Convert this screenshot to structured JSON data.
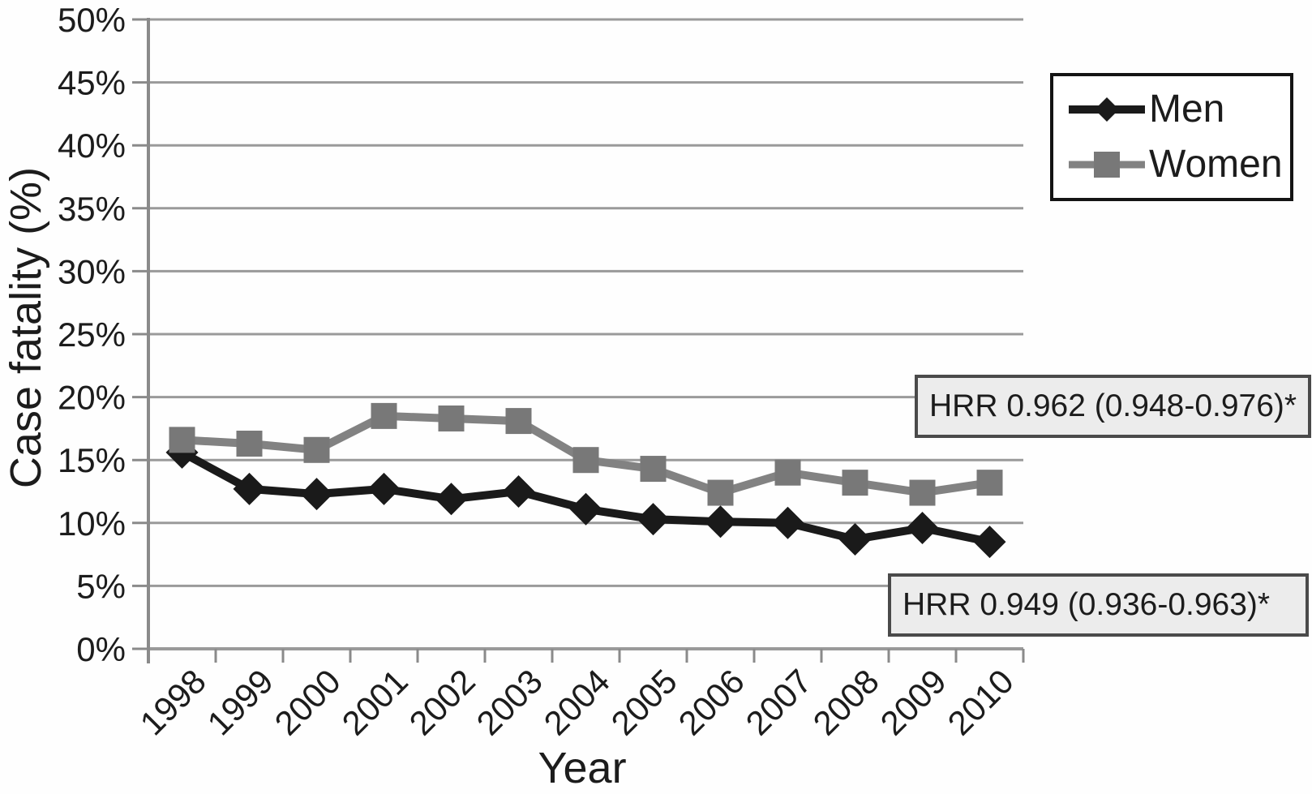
{
  "chart_data": {
    "type": "line",
    "title": "",
    "xlabel": "Year",
    "ylabel": "Case fatality (%)",
    "ylim": [
      0,
      50
    ],
    "ytick_step": 5,
    "yticklabels": [
      "0%",
      "5%",
      "10%",
      "15%",
      "20%",
      "25%",
      "30%",
      "35%",
      "40%",
      "45%",
      "50%"
    ],
    "grid": true,
    "legend_position": "top-right",
    "categories": [
      "1998",
      "1999",
      "2000",
      "2001",
      "2002",
      "2003",
      "2004",
      "2005",
      "2006",
      "2007",
      "2008",
      "2009",
      "2010"
    ],
    "series": [
      {
        "name": "Men",
        "marker": "diamond",
        "color": "#1a1a1a",
        "values": [
          15.6,
          12.7,
          12.3,
          12.7,
          11.9,
          12.5,
          11.1,
          10.3,
          10.1,
          10.0,
          8.7,
          9.6,
          8.5
        ]
      },
      {
        "name": "Women",
        "marker": "square",
        "color": "#787878",
        "line_color": "#828282",
        "values": [
          16.6,
          16.3,
          15.8,
          18.5,
          18.3,
          18.1,
          15.0,
          14.3,
          12.4,
          14.0,
          13.2,
          12.4,
          13.2
        ]
      }
    ],
    "annotations": [
      {
        "text": "HRR 0.962 (0.948-0.976)*",
        "series": "Women"
      },
      {
        "text": "HRR 0.949 (0.936-0.963)*",
        "series": "Men"
      }
    ]
  },
  "colors": {
    "men_line": "#1a1a1a",
    "women_line": "#828282",
    "women_marker": "#787878",
    "gridline": "#9a9a9a",
    "axis": "#8a8a8a",
    "annotation_background": "#ececec",
    "annotation_border": "#4a4a4a",
    "legend_border": "#141414",
    "text": "#1c1c1c"
  }
}
